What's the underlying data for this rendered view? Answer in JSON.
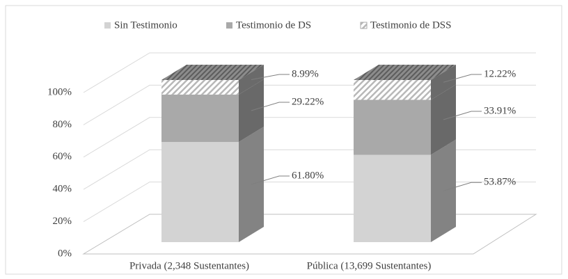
{
  "chart_data": {
    "type": "bar3d_stacked",
    "categories": [
      "Privada (2,348 Sustentantes)",
      "Pública (13,699 Sustentantes)"
    ],
    "series": [
      {
        "name": "Sin Testimonio",
        "color": "#d3d3d3",
        "values": [
          61.8,
          53.87
        ],
        "value_labels": [
          "61.80%",
          "53.87%"
        ]
      },
      {
        "name": "Testimonio de DS",
        "color": "#a9a9a9",
        "values": [
          29.22,
          33.91
        ],
        "value_labels": [
          "29.22%",
          "33.91%"
        ]
      },
      {
        "name": "Testimonio de DSS",
        "color": "#9a9a9a",
        "pattern": "hatch",
        "values": [
          8.99,
          12.22
        ],
        "value_labels": [
          "8.99%",
          "12.22%"
        ]
      }
    ],
    "ylim": [
      0,
      100
    ],
    "yticks": [
      {
        "value": 0,
        "label": "0%"
      },
      {
        "value": 20,
        "label": "20%"
      },
      {
        "value": 40,
        "label": "40%"
      },
      {
        "value": 60,
        "label": "60%"
      },
      {
        "value": 80,
        "label": "80%"
      },
      {
        "value": 100,
        "label": "100%"
      }
    ],
    "grid": true
  }
}
